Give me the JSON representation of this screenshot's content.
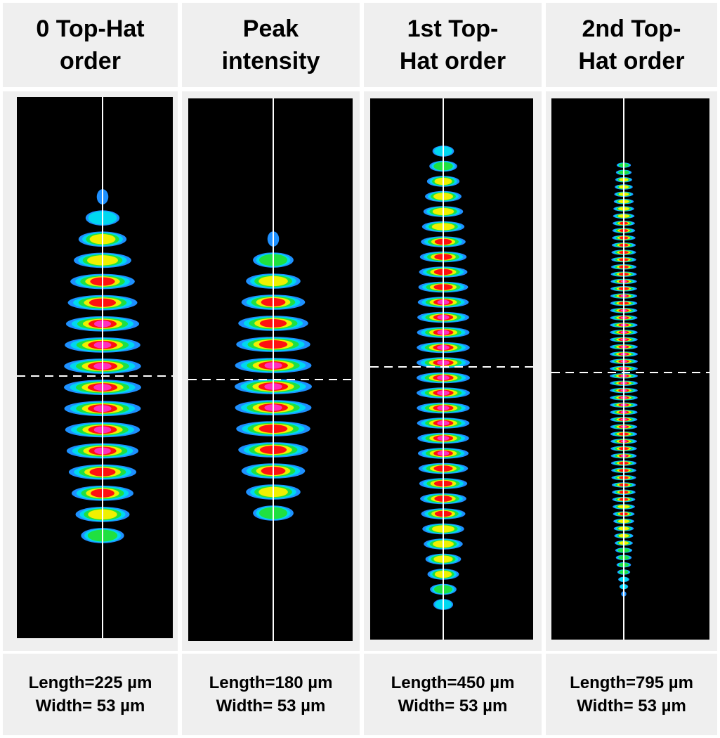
{
  "panels": [
    {
      "title": "0 Top-Hat order",
      "length": "Length=225 µm",
      "width": "Width= 53 µm"
    },
    {
      "title": "Peak intensity",
      "length": "Length=180 µm",
      "width": "Width= 53 µm"
    },
    {
      "title": "1st Top-Hat order",
      "length": "Length=450 µm",
      "width": "Width= 53 µm"
    },
    {
      "title": "2nd Top-Hat order",
      "length": "Length=795 µm",
      "width": "Width= 53 µm"
    }
  ]
}
